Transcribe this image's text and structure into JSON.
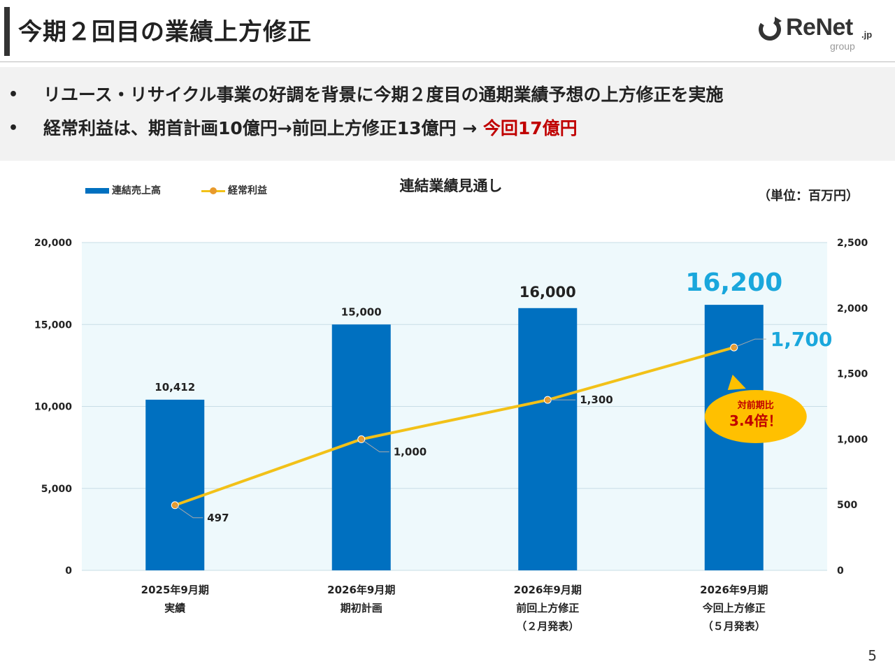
{
  "header": {
    "title": "今期２回目の業績上方修正",
    "logo": {
      "name": "ReNet",
      "suffix": ".jp",
      "sub": "group"
    }
  },
  "summary": {
    "bullet_1": "リユース・リサイクル事業の好調を背景に今期２度目の通期業績予想の上方修正を実施",
    "bullet_2_prefix": "経常利益は、期首計画10億円→前回上方修正13億円 → ",
    "bullet_2_highlight": "今回17億円"
  },
  "page_number": "5",
  "colors": {
    "bar": "#0070c0",
    "line": "#f2c118",
    "marker": "#e89a2c",
    "plot_bg": "#eef9fc",
    "highlight_cyan": "#1aa7dc",
    "callout": "#ffc000",
    "red": "#c00000"
  },
  "chart_data": {
    "type": "bar",
    "title": "連結業績見通し",
    "unit_label": "（単位：百万円）",
    "categories": [
      [
        "2025年9月期",
        "実績"
      ],
      [
        "2026年9月期",
        "期初計画"
      ],
      [
        "2026年9月期",
        "前回上方修正",
        "（２月発表）"
      ],
      [
        "2026年9月期",
        "今回上方修正",
        "（５月発表）"
      ]
    ],
    "series": [
      {
        "name": "連結売上高",
        "type": "bar",
        "axis": "left",
        "values": [
          10412,
          15000,
          16000,
          16200
        ],
        "labels": [
          "10,412",
          "15,000",
          "16,000",
          "16,200"
        ]
      },
      {
        "name": "経常利益",
        "type": "line",
        "axis": "right",
        "values": [
          497,
          1000,
          1300,
          1700
        ],
        "labels": [
          "497",
          "1,000",
          "1,300",
          "1,700"
        ]
      }
    ],
    "y_left": {
      "min": 0,
      "max": 20000,
      "ticks": [
        "0",
        "5,000",
        "10,000",
        "15,000",
        "20,000"
      ]
    },
    "y_right": {
      "min": 0,
      "max": 2500,
      "ticks": [
        "0",
        "500",
        "1,000",
        "1,500",
        "2,000",
        "2,500"
      ]
    },
    "grid": true,
    "legend": "top-left",
    "callout": {
      "line1": "対前期比",
      "line2": "3.4倍！"
    }
  }
}
